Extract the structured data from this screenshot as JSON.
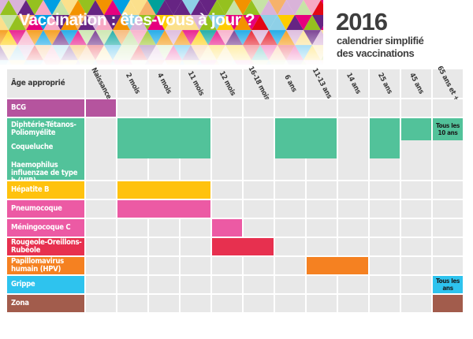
{
  "header": {
    "title": "Vaccination : êtes-vous à jour ?",
    "year": "2016",
    "subtitle_line1": "calendrier simplifié",
    "subtitle_line2": "des vaccinations"
  },
  "table": {
    "age_header": "Âge approprié",
    "columns": [
      "Naissance",
      "2 mois",
      "4 mois",
      "11 mois",
      "12 mois",
      "16-18 mois",
      "6 ans",
      "11-13 ans",
      "14 ans",
      "25 ans",
      "45 ans",
      "65 ans et +"
    ],
    "rows": [
      {
        "key": "bcg",
        "labels": [
          "BCG"
        ],
        "color": "#b5549e",
        "spans": [
          [
            0,
            0
          ]
        ]
      },
      {
        "key": "dtp",
        "labels": [
          "Diphtérie-Tétanos-Poliomyélite",
          "Coqueluche",
          "Haemophilus influenzae de type b (HIB)"
        ],
        "color": "#52c29a",
        "spans": [
          [
            1,
            3
          ],
          [
            6,
            7
          ],
          [
            9,
            9
          ]
        ],
        "top_only": [
          [
            10,
            10
          ]
        ],
        "note": "Tous les 10 ans"
      },
      {
        "key": "hepb",
        "labels": [
          "Hépatite B"
        ],
        "color": "#ffc20e",
        "spans": [
          [
            1,
            3
          ]
        ]
      },
      {
        "key": "pneumo",
        "labels": [
          "Pneumocoque"
        ],
        "color": "#ec5aa4",
        "spans": [
          [
            1,
            3
          ]
        ]
      },
      {
        "key": "meningo",
        "labels": [
          "Méningocoque C"
        ],
        "color": "#ec5aa4",
        "spans": [
          [
            4,
            4
          ]
        ]
      },
      {
        "key": "ror",
        "labels": [
          "Rougeole-Oreillons-Rubéole"
        ],
        "color": "#e7304f",
        "spans": [
          [
            4,
            5
          ]
        ]
      },
      {
        "key": "hpv",
        "labels": [
          "Papillomavirus humain (HPV)"
        ],
        "color": "#f58121",
        "spans": [
          [
            7,
            8
          ]
        ]
      },
      {
        "key": "grippe",
        "labels": [
          "Grippe"
        ],
        "color": "#2ec3ee",
        "spans": [
          [
            11,
            11
          ]
        ],
        "note": "Tous les ans"
      },
      {
        "key": "zona",
        "labels": [
          "Zona"
        ],
        "color": "#a25c4c",
        "spans": [
          [
            11,
            11
          ]
        ]
      }
    ]
  },
  "colors": {
    "banner_palette": [
      "#e6007e",
      "#f39200",
      "#ffcc00",
      "#95c11f",
      "#00a19a",
      "#009fe3",
      "#662483",
      "#e30613",
      "#f7a8c4",
      "#fbe08c",
      "#c7e3a6",
      "#8ed0e7",
      "#d9b3d9",
      "#f6b26b"
    ]
  }
}
